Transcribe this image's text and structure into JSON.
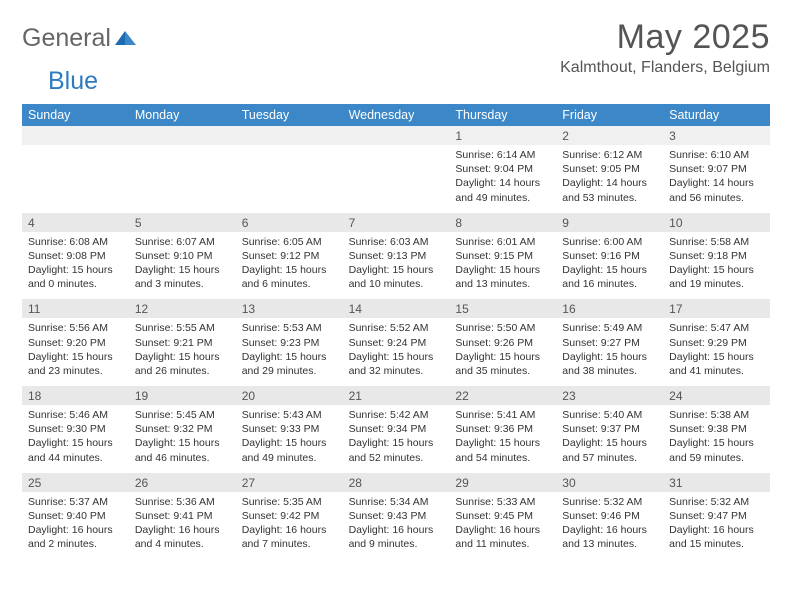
{
  "brand": {
    "part1": "General",
    "part2": "Blue"
  },
  "title": "May 2025",
  "location": "Kalmthout, Flanders, Belgium",
  "colors": {
    "header_bg": "#3b87c8",
    "header_text": "#ffffff",
    "daynum_bg": "#e8e8e8",
    "text": "#333333",
    "muted": "#555555"
  },
  "weekdays": [
    "Sunday",
    "Monday",
    "Tuesday",
    "Wednesday",
    "Thursday",
    "Friday",
    "Saturday"
  ],
  "weeks": [
    [
      {
        "n": "",
        "sr": "",
        "ss": "",
        "dl": ""
      },
      {
        "n": "",
        "sr": "",
        "ss": "",
        "dl": ""
      },
      {
        "n": "",
        "sr": "",
        "ss": "",
        "dl": ""
      },
      {
        "n": "",
        "sr": "",
        "ss": "",
        "dl": ""
      },
      {
        "n": "1",
        "sr": "Sunrise: 6:14 AM",
        "ss": "Sunset: 9:04 PM",
        "dl": "Daylight: 14 hours and 49 minutes."
      },
      {
        "n": "2",
        "sr": "Sunrise: 6:12 AM",
        "ss": "Sunset: 9:05 PM",
        "dl": "Daylight: 14 hours and 53 minutes."
      },
      {
        "n": "3",
        "sr": "Sunrise: 6:10 AM",
        "ss": "Sunset: 9:07 PM",
        "dl": "Daylight: 14 hours and 56 minutes."
      }
    ],
    [
      {
        "n": "4",
        "sr": "Sunrise: 6:08 AM",
        "ss": "Sunset: 9:08 PM",
        "dl": "Daylight: 15 hours and 0 minutes."
      },
      {
        "n": "5",
        "sr": "Sunrise: 6:07 AM",
        "ss": "Sunset: 9:10 PM",
        "dl": "Daylight: 15 hours and 3 minutes."
      },
      {
        "n": "6",
        "sr": "Sunrise: 6:05 AM",
        "ss": "Sunset: 9:12 PM",
        "dl": "Daylight: 15 hours and 6 minutes."
      },
      {
        "n": "7",
        "sr": "Sunrise: 6:03 AM",
        "ss": "Sunset: 9:13 PM",
        "dl": "Daylight: 15 hours and 10 minutes."
      },
      {
        "n": "8",
        "sr": "Sunrise: 6:01 AM",
        "ss": "Sunset: 9:15 PM",
        "dl": "Daylight: 15 hours and 13 minutes."
      },
      {
        "n": "9",
        "sr": "Sunrise: 6:00 AM",
        "ss": "Sunset: 9:16 PM",
        "dl": "Daylight: 15 hours and 16 minutes."
      },
      {
        "n": "10",
        "sr": "Sunrise: 5:58 AM",
        "ss": "Sunset: 9:18 PM",
        "dl": "Daylight: 15 hours and 19 minutes."
      }
    ],
    [
      {
        "n": "11",
        "sr": "Sunrise: 5:56 AM",
        "ss": "Sunset: 9:20 PM",
        "dl": "Daylight: 15 hours and 23 minutes."
      },
      {
        "n": "12",
        "sr": "Sunrise: 5:55 AM",
        "ss": "Sunset: 9:21 PM",
        "dl": "Daylight: 15 hours and 26 minutes."
      },
      {
        "n": "13",
        "sr": "Sunrise: 5:53 AM",
        "ss": "Sunset: 9:23 PM",
        "dl": "Daylight: 15 hours and 29 minutes."
      },
      {
        "n": "14",
        "sr": "Sunrise: 5:52 AM",
        "ss": "Sunset: 9:24 PM",
        "dl": "Daylight: 15 hours and 32 minutes."
      },
      {
        "n": "15",
        "sr": "Sunrise: 5:50 AM",
        "ss": "Sunset: 9:26 PM",
        "dl": "Daylight: 15 hours and 35 minutes."
      },
      {
        "n": "16",
        "sr": "Sunrise: 5:49 AM",
        "ss": "Sunset: 9:27 PM",
        "dl": "Daylight: 15 hours and 38 minutes."
      },
      {
        "n": "17",
        "sr": "Sunrise: 5:47 AM",
        "ss": "Sunset: 9:29 PM",
        "dl": "Daylight: 15 hours and 41 minutes."
      }
    ],
    [
      {
        "n": "18",
        "sr": "Sunrise: 5:46 AM",
        "ss": "Sunset: 9:30 PM",
        "dl": "Daylight: 15 hours and 44 minutes."
      },
      {
        "n": "19",
        "sr": "Sunrise: 5:45 AM",
        "ss": "Sunset: 9:32 PM",
        "dl": "Daylight: 15 hours and 46 minutes."
      },
      {
        "n": "20",
        "sr": "Sunrise: 5:43 AM",
        "ss": "Sunset: 9:33 PM",
        "dl": "Daylight: 15 hours and 49 minutes."
      },
      {
        "n": "21",
        "sr": "Sunrise: 5:42 AM",
        "ss": "Sunset: 9:34 PM",
        "dl": "Daylight: 15 hours and 52 minutes."
      },
      {
        "n": "22",
        "sr": "Sunrise: 5:41 AM",
        "ss": "Sunset: 9:36 PM",
        "dl": "Daylight: 15 hours and 54 minutes."
      },
      {
        "n": "23",
        "sr": "Sunrise: 5:40 AM",
        "ss": "Sunset: 9:37 PM",
        "dl": "Daylight: 15 hours and 57 minutes."
      },
      {
        "n": "24",
        "sr": "Sunrise: 5:38 AM",
        "ss": "Sunset: 9:38 PM",
        "dl": "Daylight: 15 hours and 59 minutes."
      }
    ],
    [
      {
        "n": "25",
        "sr": "Sunrise: 5:37 AM",
        "ss": "Sunset: 9:40 PM",
        "dl": "Daylight: 16 hours and 2 minutes."
      },
      {
        "n": "26",
        "sr": "Sunrise: 5:36 AM",
        "ss": "Sunset: 9:41 PM",
        "dl": "Daylight: 16 hours and 4 minutes."
      },
      {
        "n": "27",
        "sr": "Sunrise: 5:35 AM",
        "ss": "Sunset: 9:42 PM",
        "dl": "Daylight: 16 hours and 7 minutes."
      },
      {
        "n": "28",
        "sr": "Sunrise: 5:34 AM",
        "ss": "Sunset: 9:43 PM",
        "dl": "Daylight: 16 hours and 9 minutes."
      },
      {
        "n": "29",
        "sr": "Sunrise: 5:33 AM",
        "ss": "Sunset: 9:45 PM",
        "dl": "Daylight: 16 hours and 11 minutes."
      },
      {
        "n": "30",
        "sr": "Sunrise: 5:32 AM",
        "ss": "Sunset: 9:46 PM",
        "dl": "Daylight: 16 hours and 13 minutes."
      },
      {
        "n": "31",
        "sr": "Sunrise: 5:32 AM",
        "ss": "Sunset: 9:47 PM",
        "dl": "Daylight: 16 hours and 15 minutes."
      }
    ]
  ]
}
